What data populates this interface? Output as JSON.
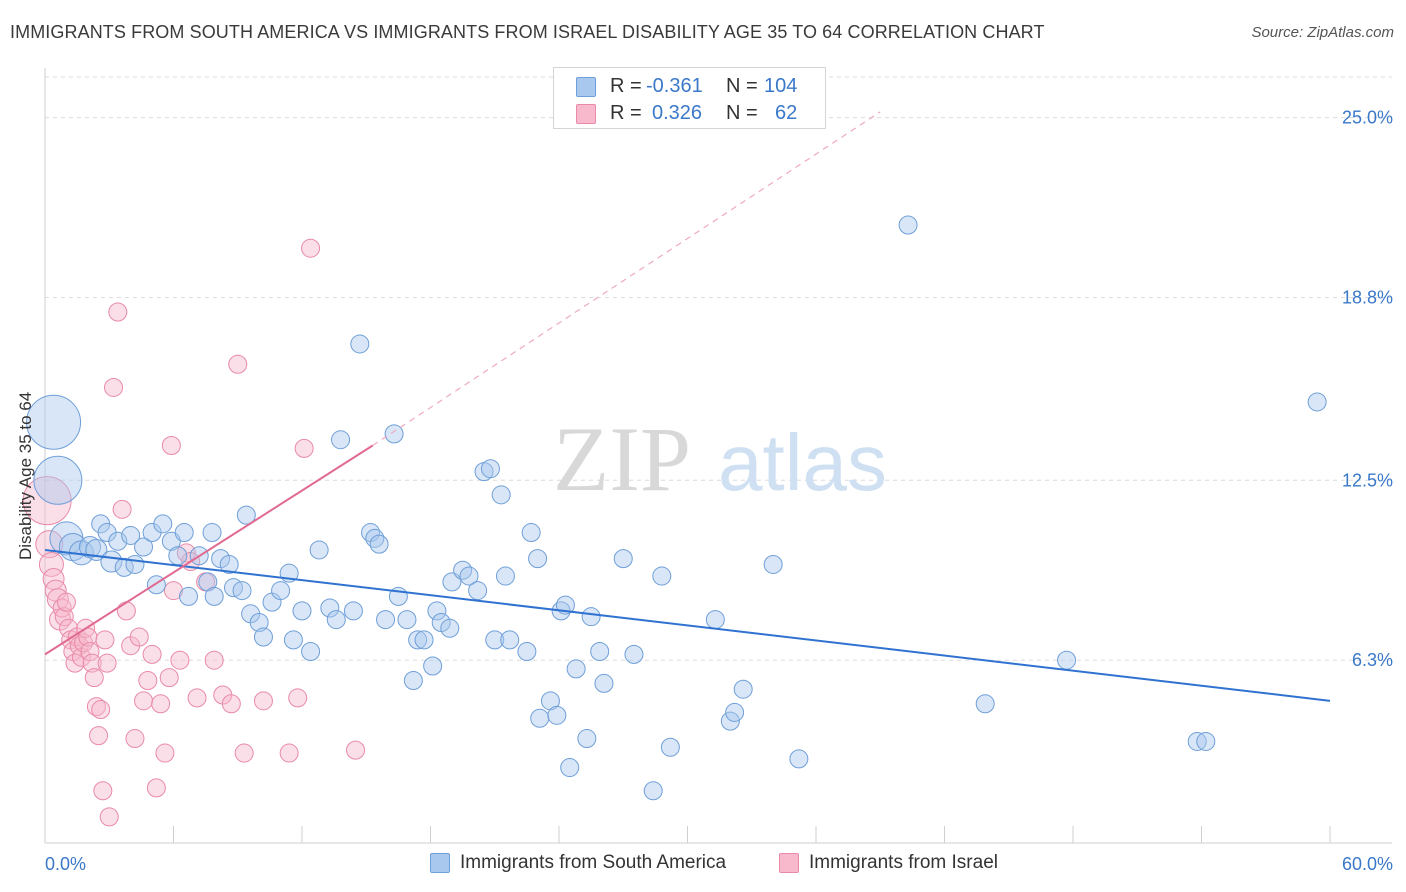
{
  "header": {
    "title": "IMMIGRANTS FROM SOUTH AMERICA VS IMMIGRANTS FROM ISRAEL DISABILITY AGE 35 TO 64 CORRELATION CHART",
    "source": "Source: ZipAtlas.com"
  },
  "legend": {
    "r_label": "R =",
    "n_label": "N =",
    "rows": [
      {
        "r": "-0.361",
        "n": "104"
      },
      {
        "r": "0.326",
        "n": "62"
      }
    ]
  },
  "bottom_legend": {
    "south_america": "Immigrants from South America",
    "israel": "Immigrants from Israel"
  },
  "watermark": {
    "part1": "ZIP",
    "part2": "atlas"
  },
  "colors": {
    "blue_fill": "#a9c8ee",
    "blue_stroke": "#6f9fd8",
    "blue_line": "#2f72d0",
    "pink_fill": "#f7b9cb",
    "pink_stroke": "#e98aa8",
    "pink_line": "#e06a90",
    "tick_label": "#3a78c9",
    "grid": "#dcdcdc"
  },
  "chart_data": {
    "type": "scatter",
    "title": "IMMIGRANTS FROM SOUTH AMERICA VS IMMIGRANTS FROM ISRAEL DISABILITY AGE 35 TO 64 CORRELATION CHART",
    "xlabel": "",
    "ylabel": "Disability Age 35 to 64",
    "xlim": [
      0,
      60
    ],
    "ylim": [
      0,
      26.4
    ],
    "x_tick_labels": [
      "0.0%",
      "60.0%"
    ],
    "y_ticks": [
      6.3,
      12.5,
      18.8,
      25.0
    ],
    "y_tick_labels": [
      "6.3%",
      "12.5%",
      "18.8%",
      "25.0%"
    ],
    "grid": true,
    "legend_position": "top-center",
    "series": [
      {
        "name": "Immigrants from South America",
        "color": "#a9c8ee",
        "r": -0.361,
        "n": 104,
        "trend": {
          "x": [
            0,
            60
          ],
          "y": [
            10.1,
            4.9
          ]
        },
        "points": [
          [
            0.4,
            14.5,
            1.8
          ],
          [
            0.6,
            12.5,
            1.6
          ],
          [
            1.0,
            10.5,
            1.1
          ],
          [
            1.3,
            10.2,
            0.9
          ],
          [
            1.7,
            10.0,
            0.8
          ],
          [
            2.1,
            10.2,
            0.7
          ],
          [
            2.4,
            10.1,
            0.7
          ],
          [
            2.6,
            11.0,
            0.6
          ],
          [
            2.9,
            10.7,
            0.6
          ],
          [
            3.1,
            9.7,
            0.7
          ],
          [
            3.4,
            10.4,
            0.6
          ],
          [
            3.7,
            9.5,
            0.6
          ],
          [
            4.0,
            10.6,
            0.6
          ],
          [
            4.2,
            9.6,
            0.6
          ],
          [
            4.6,
            10.2,
            0.6
          ],
          [
            5.0,
            10.7,
            0.6
          ],
          [
            5.2,
            8.9,
            0.6
          ],
          [
            5.5,
            11.0,
            0.6
          ],
          [
            5.9,
            10.4,
            0.6
          ],
          [
            6.2,
            9.9,
            0.6
          ],
          [
            6.5,
            10.7,
            0.6
          ],
          [
            6.7,
            8.5,
            0.6
          ],
          [
            7.2,
            9.9,
            0.6
          ],
          [
            7.6,
            9.0,
            0.6
          ],
          [
            7.8,
            10.7,
            0.6
          ],
          [
            7.9,
            8.5,
            0.6
          ],
          [
            8.2,
            9.8,
            0.6
          ],
          [
            8.6,
            9.6,
            0.6
          ],
          [
            8.8,
            8.8,
            0.6
          ],
          [
            9.2,
            8.7,
            0.6
          ],
          [
            9.4,
            11.3,
            0.6
          ],
          [
            9.6,
            7.9,
            0.6
          ],
          [
            10.0,
            7.6,
            0.6
          ],
          [
            10.2,
            7.1,
            0.6
          ],
          [
            10.6,
            8.3,
            0.6
          ],
          [
            11.0,
            8.7,
            0.6
          ],
          [
            11.4,
            9.3,
            0.6
          ],
          [
            11.6,
            7.0,
            0.6
          ],
          [
            12.0,
            8.0,
            0.6
          ],
          [
            12.4,
            6.6,
            0.6
          ],
          [
            12.8,
            10.1,
            0.6
          ],
          [
            13.3,
            8.1,
            0.6
          ],
          [
            13.6,
            7.7,
            0.6
          ],
          [
            13.8,
            13.9,
            0.6
          ],
          [
            14.4,
            8.0,
            0.6
          ],
          [
            14.7,
            17.2,
            0.6
          ],
          [
            15.2,
            10.7,
            0.6
          ],
          [
            15.4,
            10.5,
            0.6
          ],
          [
            15.6,
            10.3,
            0.6
          ],
          [
            15.9,
            7.7,
            0.6
          ],
          [
            16.3,
            14.1,
            0.6
          ],
          [
            16.5,
            8.5,
            0.6
          ],
          [
            16.9,
            7.7,
            0.6
          ],
          [
            17.2,
            5.6,
            0.6
          ],
          [
            17.4,
            7.0,
            0.6
          ],
          [
            17.7,
            7.0,
            0.6
          ],
          [
            18.1,
            6.1,
            0.6
          ],
          [
            18.3,
            8.0,
            0.6
          ],
          [
            18.5,
            7.6,
            0.6
          ],
          [
            18.9,
            7.4,
            0.6
          ],
          [
            19.0,
            9.0,
            0.6
          ],
          [
            19.5,
            9.4,
            0.6
          ],
          [
            19.8,
            9.2,
            0.6
          ],
          [
            20.2,
            8.7,
            0.6
          ],
          [
            20.5,
            12.8,
            0.6
          ],
          [
            20.8,
            12.9,
            0.6
          ],
          [
            21.0,
            7.0,
            0.6
          ],
          [
            21.3,
            12.0,
            0.6
          ],
          [
            21.5,
            9.2,
            0.6
          ],
          [
            21.7,
            7.0,
            0.6
          ],
          [
            22.5,
            6.6,
            0.6
          ],
          [
            22.7,
            10.7,
            0.6
          ],
          [
            23.0,
            9.8,
            0.6
          ],
          [
            23.1,
            4.3,
            0.6
          ],
          [
            23.6,
            4.9,
            0.6
          ],
          [
            23.9,
            4.4,
            0.6
          ],
          [
            24.1,
            8.0,
            0.6
          ],
          [
            24.3,
            8.2,
            0.6
          ],
          [
            24.5,
            2.6,
            0.6
          ],
          [
            24.8,
            6.0,
            0.6
          ],
          [
            25.3,
            3.6,
            0.6
          ],
          [
            25.5,
            7.8,
            0.6
          ],
          [
            25.9,
            6.6,
            0.6
          ],
          [
            26.1,
            5.5,
            0.6
          ],
          [
            27.0,
            9.8,
            0.6
          ],
          [
            27.5,
            6.5,
            0.6
          ],
          [
            28.4,
            1.8,
            0.6
          ],
          [
            28.8,
            9.2,
            0.6
          ],
          [
            29.2,
            3.3,
            0.6
          ],
          [
            31.3,
            7.7,
            0.6
          ],
          [
            32.0,
            4.2,
            0.6
          ],
          [
            32.2,
            4.5,
            0.6
          ],
          [
            32.6,
            5.3,
            0.6
          ],
          [
            34.0,
            9.6,
            0.6
          ],
          [
            35.2,
            2.9,
            0.6
          ],
          [
            40.3,
            21.3,
            0.6
          ],
          [
            43.9,
            4.8,
            0.6
          ],
          [
            47.7,
            6.3,
            0.6
          ],
          [
            53.8,
            3.5,
            0.6
          ],
          [
            54.2,
            3.5,
            0.6
          ],
          [
            59.4,
            15.2,
            0.6
          ]
        ]
      },
      {
        "name": "Immigrants from Israel",
        "color": "#f7b9cb",
        "r": 0.326,
        "n": 62,
        "trend": {
          "x": [
            0,
            15.3
          ],
          "y": [
            6.5,
            13.7
          ]
        },
        "trend_extension": {
          "x": [
            15.3,
            39
          ],
          "y": [
            13.7,
            25.2
          ]
        },
        "points": [
          [
            0.1,
            11.8,
            1.6
          ],
          [
            0.2,
            10.3,
            0.9
          ],
          [
            0.3,
            9.6,
            0.8
          ],
          [
            0.4,
            9.1,
            0.7
          ],
          [
            0.5,
            8.7,
            0.7
          ],
          [
            0.6,
            8.4,
            0.7
          ],
          [
            0.7,
            7.7,
            0.7
          ],
          [
            0.8,
            8.1,
            0.6
          ],
          [
            0.9,
            7.8,
            0.6
          ],
          [
            1.0,
            8.3,
            0.6
          ],
          [
            1.1,
            7.4,
            0.6
          ],
          [
            1.2,
            7.0,
            0.6
          ],
          [
            1.3,
            6.6,
            0.6
          ],
          [
            1.4,
            6.2,
            0.6
          ],
          [
            1.5,
            7.1,
            0.6
          ],
          [
            1.6,
            6.8,
            0.6
          ],
          [
            1.7,
            6.4,
            0.6
          ],
          [
            1.8,
            6.9,
            0.6
          ],
          [
            1.9,
            7.4,
            0.6
          ],
          [
            2.0,
            7.1,
            0.6
          ],
          [
            2.1,
            6.6,
            0.6
          ],
          [
            2.2,
            6.2,
            0.6
          ],
          [
            2.3,
            5.7,
            0.6
          ],
          [
            2.4,
            4.7,
            0.6
          ],
          [
            2.5,
            3.7,
            0.6
          ],
          [
            2.6,
            4.6,
            0.6
          ],
          [
            2.7,
            1.8,
            0.6
          ],
          [
            2.8,
            7.0,
            0.6
          ],
          [
            2.9,
            6.2,
            0.6
          ],
          [
            3.0,
            0.9,
            0.6
          ],
          [
            3.2,
            15.7,
            0.6
          ],
          [
            3.4,
            18.3,
            0.6
          ],
          [
            3.6,
            11.5,
            0.6
          ],
          [
            3.8,
            8.0,
            0.6
          ],
          [
            4.0,
            6.8,
            0.6
          ],
          [
            4.2,
            3.6,
            0.6
          ],
          [
            4.4,
            7.1,
            0.6
          ],
          [
            4.6,
            4.9,
            0.6
          ],
          [
            4.8,
            5.6,
            0.6
          ],
          [
            5.0,
            6.5,
            0.6
          ],
          [
            5.2,
            1.9,
            0.6
          ],
          [
            5.4,
            4.8,
            0.6
          ],
          [
            5.6,
            3.1,
            0.6
          ],
          [
            5.8,
            5.7,
            0.6
          ],
          [
            5.9,
            13.7,
            0.6
          ],
          [
            6.0,
            8.7,
            0.6
          ],
          [
            6.3,
            6.3,
            0.6
          ],
          [
            6.6,
            10.0,
            0.6
          ],
          [
            6.8,
            9.7,
            0.6
          ],
          [
            7.1,
            5.0,
            0.6
          ],
          [
            7.5,
            9.0,
            0.6
          ],
          [
            7.9,
            6.3,
            0.6
          ],
          [
            8.3,
            5.1,
            0.6
          ],
          [
            8.7,
            4.8,
            0.6
          ],
          [
            9.0,
            16.5,
            0.6
          ],
          [
            9.3,
            3.1,
            0.6
          ],
          [
            10.2,
            4.9,
            0.6
          ],
          [
            11.4,
            3.1,
            0.6
          ],
          [
            11.8,
            5.0,
            0.6
          ],
          [
            12.1,
            13.6,
            0.6
          ],
          [
            12.4,
            20.5,
            0.6
          ],
          [
            14.5,
            3.2,
            0.6
          ]
        ]
      }
    ]
  }
}
